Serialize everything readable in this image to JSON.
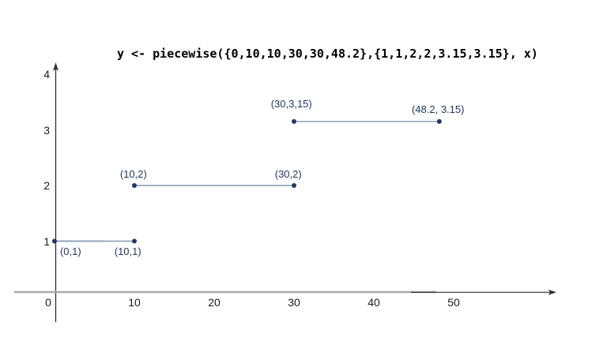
{
  "colors": {
    "background": "#ffffff",
    "axis": "#2e2e2e",
    "axis_gray": "#a9a9a9",
    "segment_line": "#7d9cba",
    "segment_light": "#bccbdc",
    "point": "#1f3864",
    "annotation": "#1f3864",
    "title": "#000000"
  },
  "chart_data": {
    "type": "line",
    "title": "y <- piecewise({0,10,10,30,30,48.2},{1,1,2,2,3.15,3.15}, x)",
    "xlabel": "",
    "ylabel": "",
    "xlim": [
      0,
      63
    ],
    "ylim": [
      0,
      4.3
    ],
    "grid": false,
    "legend": false,
    "x_ticks": [
      0,
      10,
      20,
      30,
      40,
      50
    ],
    "y_ticks": [
      1,
      2,
      3,
      4
    ],
    "segments": [
      {
        "x1": 0,
        "y1": 1,
        "x2": 10,
        "y2": 1
      },
      {
        "x1": 10,
        "y1": 2,
        "x2": 30,
        "y2": 2
      },
      {
        "x1": 30,
        "y1": 3.15,
        "x2": 48.2,
        "y2": 3.15
      }
    ],
    "points": [
      [
        0,
        1
      ],
      [
        10,
        1
      ],
      [
        10,
        2
      ],
      [
        30,
        2
      ],
      [
        30,
        3.15
      ],
      [
        48.2,
        3.15
      ]
    ],
    "annotations": [
      {
        "text": "(0,1)",
        "x": 0.69,
        "y": 0.92
      },
      {
        "text": "(10,1)",
        "x": 7.5,
        "y": 0.92
      },
      {
        "text": "(10,2)",
        "x": 8.2,
        "y": 2.31
      },
      {
        "text": "(30,2)",
        "x": 27.6,
        "y": 2.31
      },
      {
        "text": "(30,3,15)",
        "x": 27.1,
        "y": 3.57
      },
      {
        "text": "(48.2, 3.15)",
        "x": 44.75,
        "y": 3.48
      }
    ]
  }
}
